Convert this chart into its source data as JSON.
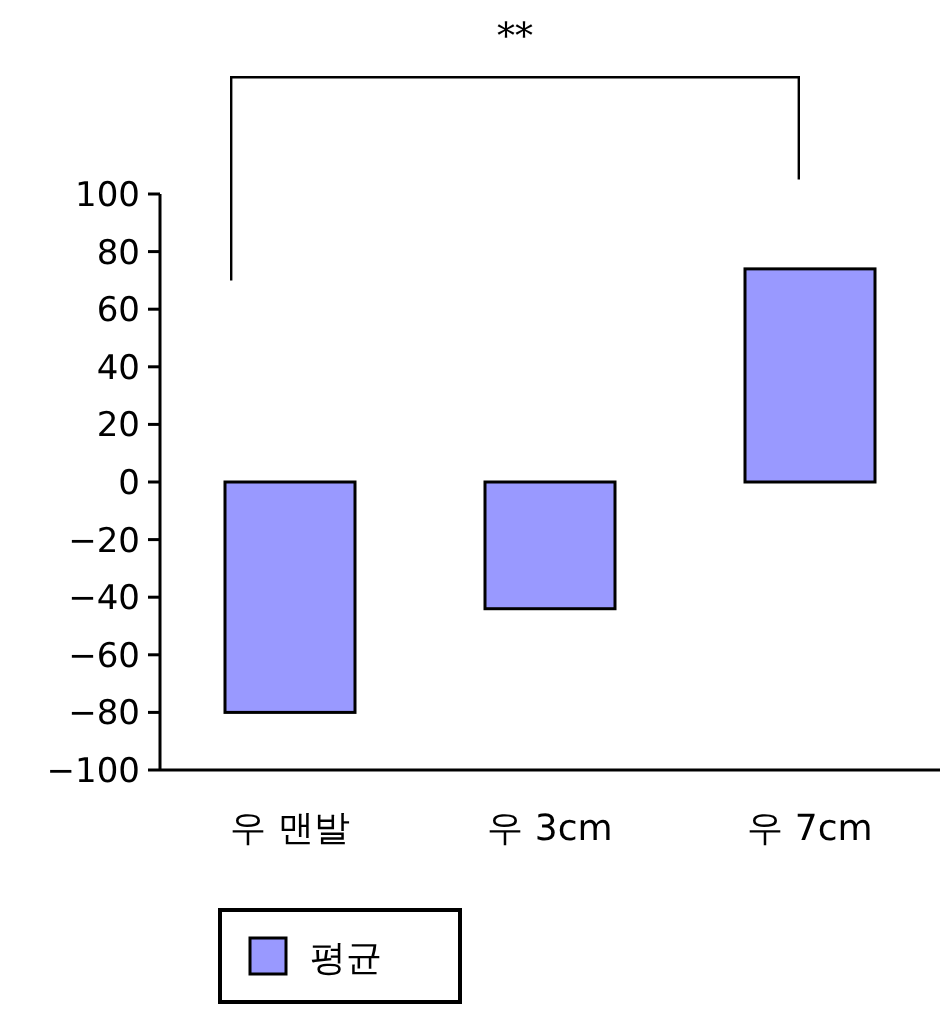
{
  "chart_data": {
    "type": "bar",
    "categories": [
      "우 맨발",
      "우 3cm",
      "우 7cm"
    ],
    "series": [
      {
        "name": "평균",
        "color": "#9999ff",
        "values": [
          -80,
          -44,
          74
        ]
      }
    ],
    "ylim": [
      -100,
      100
    ],
    "yticks": [
      -100,
      -80,
      -60,
      -40,
      -20,
      0,
      20,
      40,
      60,
      80,
      100
    ],
    "grid": false,
    "legend": "bottom",
    "annotations": [
      "**"
    ]
  }
}
